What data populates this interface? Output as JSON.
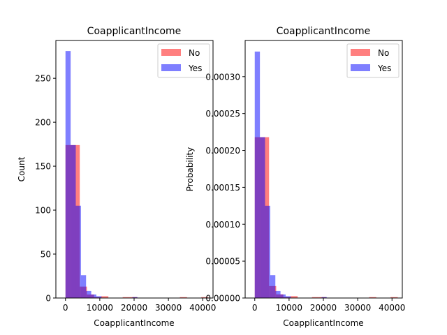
{
  "chart_data": [
    {
      "type": "histogram",
      "title": "CoapplicantIncome",
      "xlabel": "CoapplicantIncome",
      "ylabel": "Count",
      "xlim": [
        -2800,
        43000
      ],
      "ylim": [
        0,
        293
      ],
      "xticks": [
        0,
        10000,
        20000,
        30000,
        40000
      ],
      "xtick_labels": [
        "0",
        "10000",
        "20000",
        "30000",
        "40000"
      ],
      "yticks": [
        0,
        50,
        100,
        150,
        200,
        250
      ],
      "ytick_labels": [
        "0",
        "50",
        "100",
        "150",
        "200",
        "250"
      ],
      "legend": {
        "placement": "top-right",
        "entries": [
          "No",
          "Yes"
        ]
      },
      "series": [
        {
          "name": "No",
          "color": "#ff0000",
          "opacity": 0.5,
          "bins": [
            [
              0,
              2083,
              174
            ],
            [
              2083,
              4167,
              174
            ],
            [
              4167,
              6250,
              13
            ],
            [
              6250,
              8333,
              4
            ],
            [
              8333,
              10417,
              1
            ],
            [
              10417,
              12500,
              2
            ],
            [
              16667,
              18750,
              1
            ],
            [
              18750,
              20833,
              1
            ],
            [
              33333,
              35417,
              1
            ],
            [
              39583,
              41667,
              1
            ]
          ]
        },
        {
          "name": "Yes",
          "color": "#0000ff",
          "opacity": 0.5,
          "bins": [
            [
              0,
              1500,
              281
            ],
            [
              1500,
              3000,
              174
            ],
            [
              3000,
              4500,
              105
            ],
            [
              4500,
              6000,
              26
            ],
            [
              6000,
              7500,
              8
            ],
            [
              7500,
              9000,
              4
            ],
            [
              9000,
              10500,
              2
            ],
            [
              19500,
              21000,
              1
            ]
          ]
        }
      ]
    },
    {
      "type": "histogram",
      "title": "CoapplicantIncome",
      "xlabel": "CoapplicantIncome",
      "ylabel": "Probability",
      "xlim": [
        -2800,
        43000
      ],
      "ylim": [
        0,
        0.000349
      ],
      "xticks": [
        0,
        10000,
        20000,
        30000,
        40000
      ],
      "xtick_labels": [
        "0",
        "10000",
        "20000",
        "30000",
        "40000"
      ],
      "yticks": [
        0,
        5e-05,
        0.0001,
        0.00015,
        0.0002,
        0.00025,
        0.0003
      ],
      "ytick_labels": [
        "0.00000",
        "0.00005",
        "0.00010",
        "0.00015",
        "0.00020",
        "0.00025",
        "0.00030"
      ],
      "legend": {
        "placement": "top-right",
        "entries": [
          "No",
          "Yes"
        ]
      },
      "series": [
        {
          "name": "No",
          "color": "#ff0000",
          "opacity": 0.5,
          "bins": [
            [
              0,
              2083,
              0.000218
            ],
            [
              2083,
              4167,
              0.000218
            ],
            [
              4167,
              6250,
              1.62e-05
            ],
            [
              6250,
              8333,
              5e-06
            ],
            [
              8333,
              10417,
              1.2e-06
            ],
            [
              10417,
              12500,
              2.5e-06
            ],
            [
              16667,
              18750,
              1.2e-06
            ],
            [
              18750,
              20833,
              1.2e-06
            ],
            [
              33333,
              35417,
              1.2e-06
            ],
            [
              39583,
              41667,
              1.2e-06
            ]
          ]
        },
        {
          "name": "Yes",
          "color": "#0000ff",
          "opacity": 0.5,
          "bins": [
            [
              0,
              1500,
              0.000334
            ],
            [
              1500,
              3000,
              0.000218
            ],
            [
              3000,
              4500,
              0.000125
            ],
            [
              4500,
              6000,
              3.1e-05
            ],
            [
              6000,
              7500,
              9.5e-06
            ],
            [
              7500,
              9000,
              4.8e-06
            ],
            [
              9000,
              10500,
              2.4e-06
            ],
            [
              19500,
              21000,
              1.2e-06
            ]
          ]
        }
      ]
    }
  ]
}
